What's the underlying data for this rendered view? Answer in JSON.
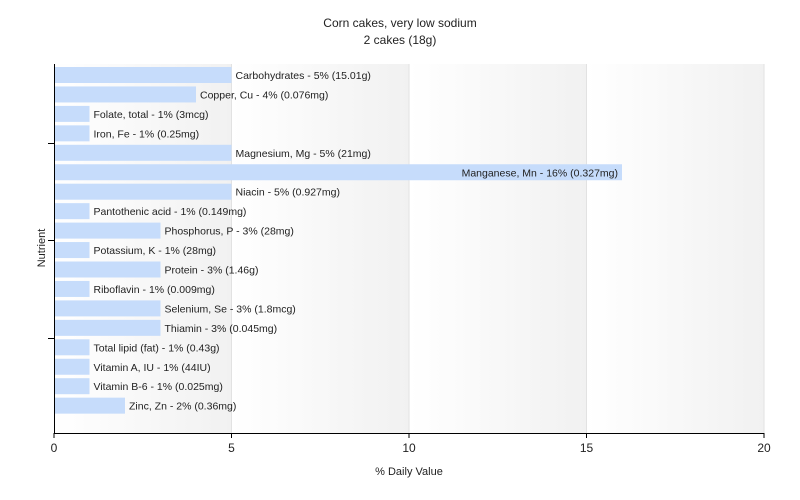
{
  "chart_data": {
    "type": "bar",
    "orientation": "horizontal",
    "title": "Corn cakes, very low sodium",
    "subtitle": "2 cakes (18g)",
    "xlabel": "% Daily Value",
    "ylabel": "Nutrient",
    "xlim": [
      0,
      20
    ],
    "xticks": [
      0,
      5,
      10,
      15,
      20
    ],
    "grid": true,
    "bar_color": "#c6dcfb",
    "categories": [
      "Carbohydrates",
      "Copper, Cu",
      "Folate, total",
      "Iron, Fe",
      "Magnesium, Mg",
      "Manganese, Mn",
      "Niacin",
      "Pantothenic acid",
      "Phosphorus, P",
      "Potassium, K",
      "Protein",
      "Riboflavin",
      "Selenium, Se",
      "Thiamin",
      "Total lipid (fat)",
      "Vitamin A, IU",
      "Vitamin B-6",
      "Zinc, Zn"
    ],
    "values": [
      5,
      4,
      1,
      1,
      5,
      16,
      5,
      1,
      3,
      1,
      3,
      1,
      3,
      3,
      1,
      1,
      1,
      2
    ],
    "labels": [
      "Carbohydrates - 5% (15.01g)",
      "Copper, Cu - 4% (0.076mg)",
      "Folate, total - 1% (3mcg)",
      "Iron, Fe - 1% (0.25mg)",
      "Magnesium, Mg - 5% (21mg)",
      "Manganese, Mn - 16% (0.327mg)",
      "Niacin - 5% (0.927mg)",
      "Pantothenic acid - 1% (0.149mg)",
      "Phosphorus, P - 3% (28mg)",
      "Potassium, K - 1% (28mg)",
      "Protein - 3% (1.46g)",
      "Riboflavin - 1% (0.009mg)",
      "Selenium, Se - 3% (1.8mcg)",
      "Thiamin - 3% (0.045mg)",
      "Total lipid (fat) - 1% (0.43g)",
      "Vitamin A, IU - 1% (44IU)",
      "Vitamin B-6 - 1% (0.025mg)",
      "Zinc, Zn - 2% (0.36mg)"
    ]
  }
}
